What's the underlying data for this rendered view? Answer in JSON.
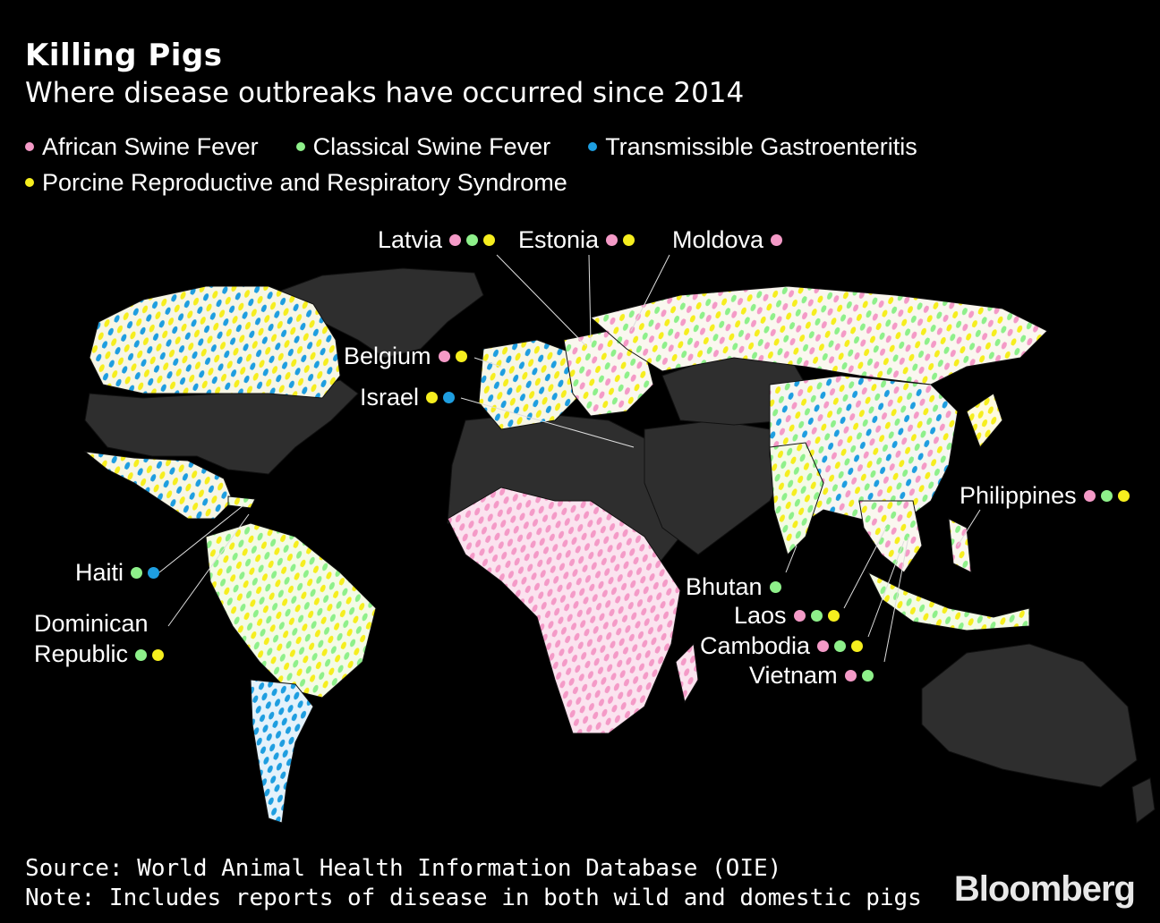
{
  "title": "Killing Pigs",
  "subtitle": "Where disease outbreaks have occurred since 2014",
  "legend": [
    {
      "label": "African Swine Fever",
      "color": "#f49ac7"
    },
    {
      "label": "Classical Swine Fever",
      "color": "#8ef08a"
    },
    {
      "label": "Transmissible Gastroenteritis",
      "color": "#1e9ee0"
    },
    {
      "label": "Porcine Reproductive and Respiratory Syndrome",
      "color": "#f6ee1e"
    }
  ],
  "colors": {
    "background": "#000000",
    "land_no_data": "#2e2e2e",
    "border": "#111111"
  },
  "callouts": [
    {
      "name": "Latvia",
      "diseases": [
        "asf",
        "csf",
        "prrs"
      ]
    },
    {
      "name": "Estonia",
      "diseases": [
        "asf",
        "prrs"
      ]
    },
    {
      "name": "Moldova",
      "diseases": [
        "asf"
      ]
    },
    {
      "name": "Belgium",
      "diseases": [
        "asf",
        "prrs"
      ]
    },
    {
      "name": "Israel",
      "diseases": [
        "prrs",
        "tge"
      ]
    },
    {
      "name": "Philippines",
      "diseases": [
        "asf",
        "csf",
        "prrs"
      ]
    },
    {
      "name": "Haiti",
      "diseases": [
        "csf",
        "tge"
      ]
    },
    {
      "name": "Bhutan",
      "diseases": [
        "csf"
      ]
    },
    {
      "name": "Laos",
      "diseases": [
        "asf",
        "csf",
        "prrs"
      ]
    },
    {
      "name": "Cambodia",
      "diseases": [
        "asf",
        "csf",
        "prrs"
      ]
    },
    {
      "name": "Vietnam",
      "diseases": [
        "asf",
        "csf"
      ]
    }
  ],
  "dominican": {
    "line1": "Dominican",
    "line2": "Republic",
    "diseases": [
      "csf",
      "prrs"
    ]
  },
  "source": "Source: World Animal Health Information Database (OIE)",
  "note": "Note: Includes reports of disease in both wild and domestic pigs",
  "brand": "Bloomberg"
}
